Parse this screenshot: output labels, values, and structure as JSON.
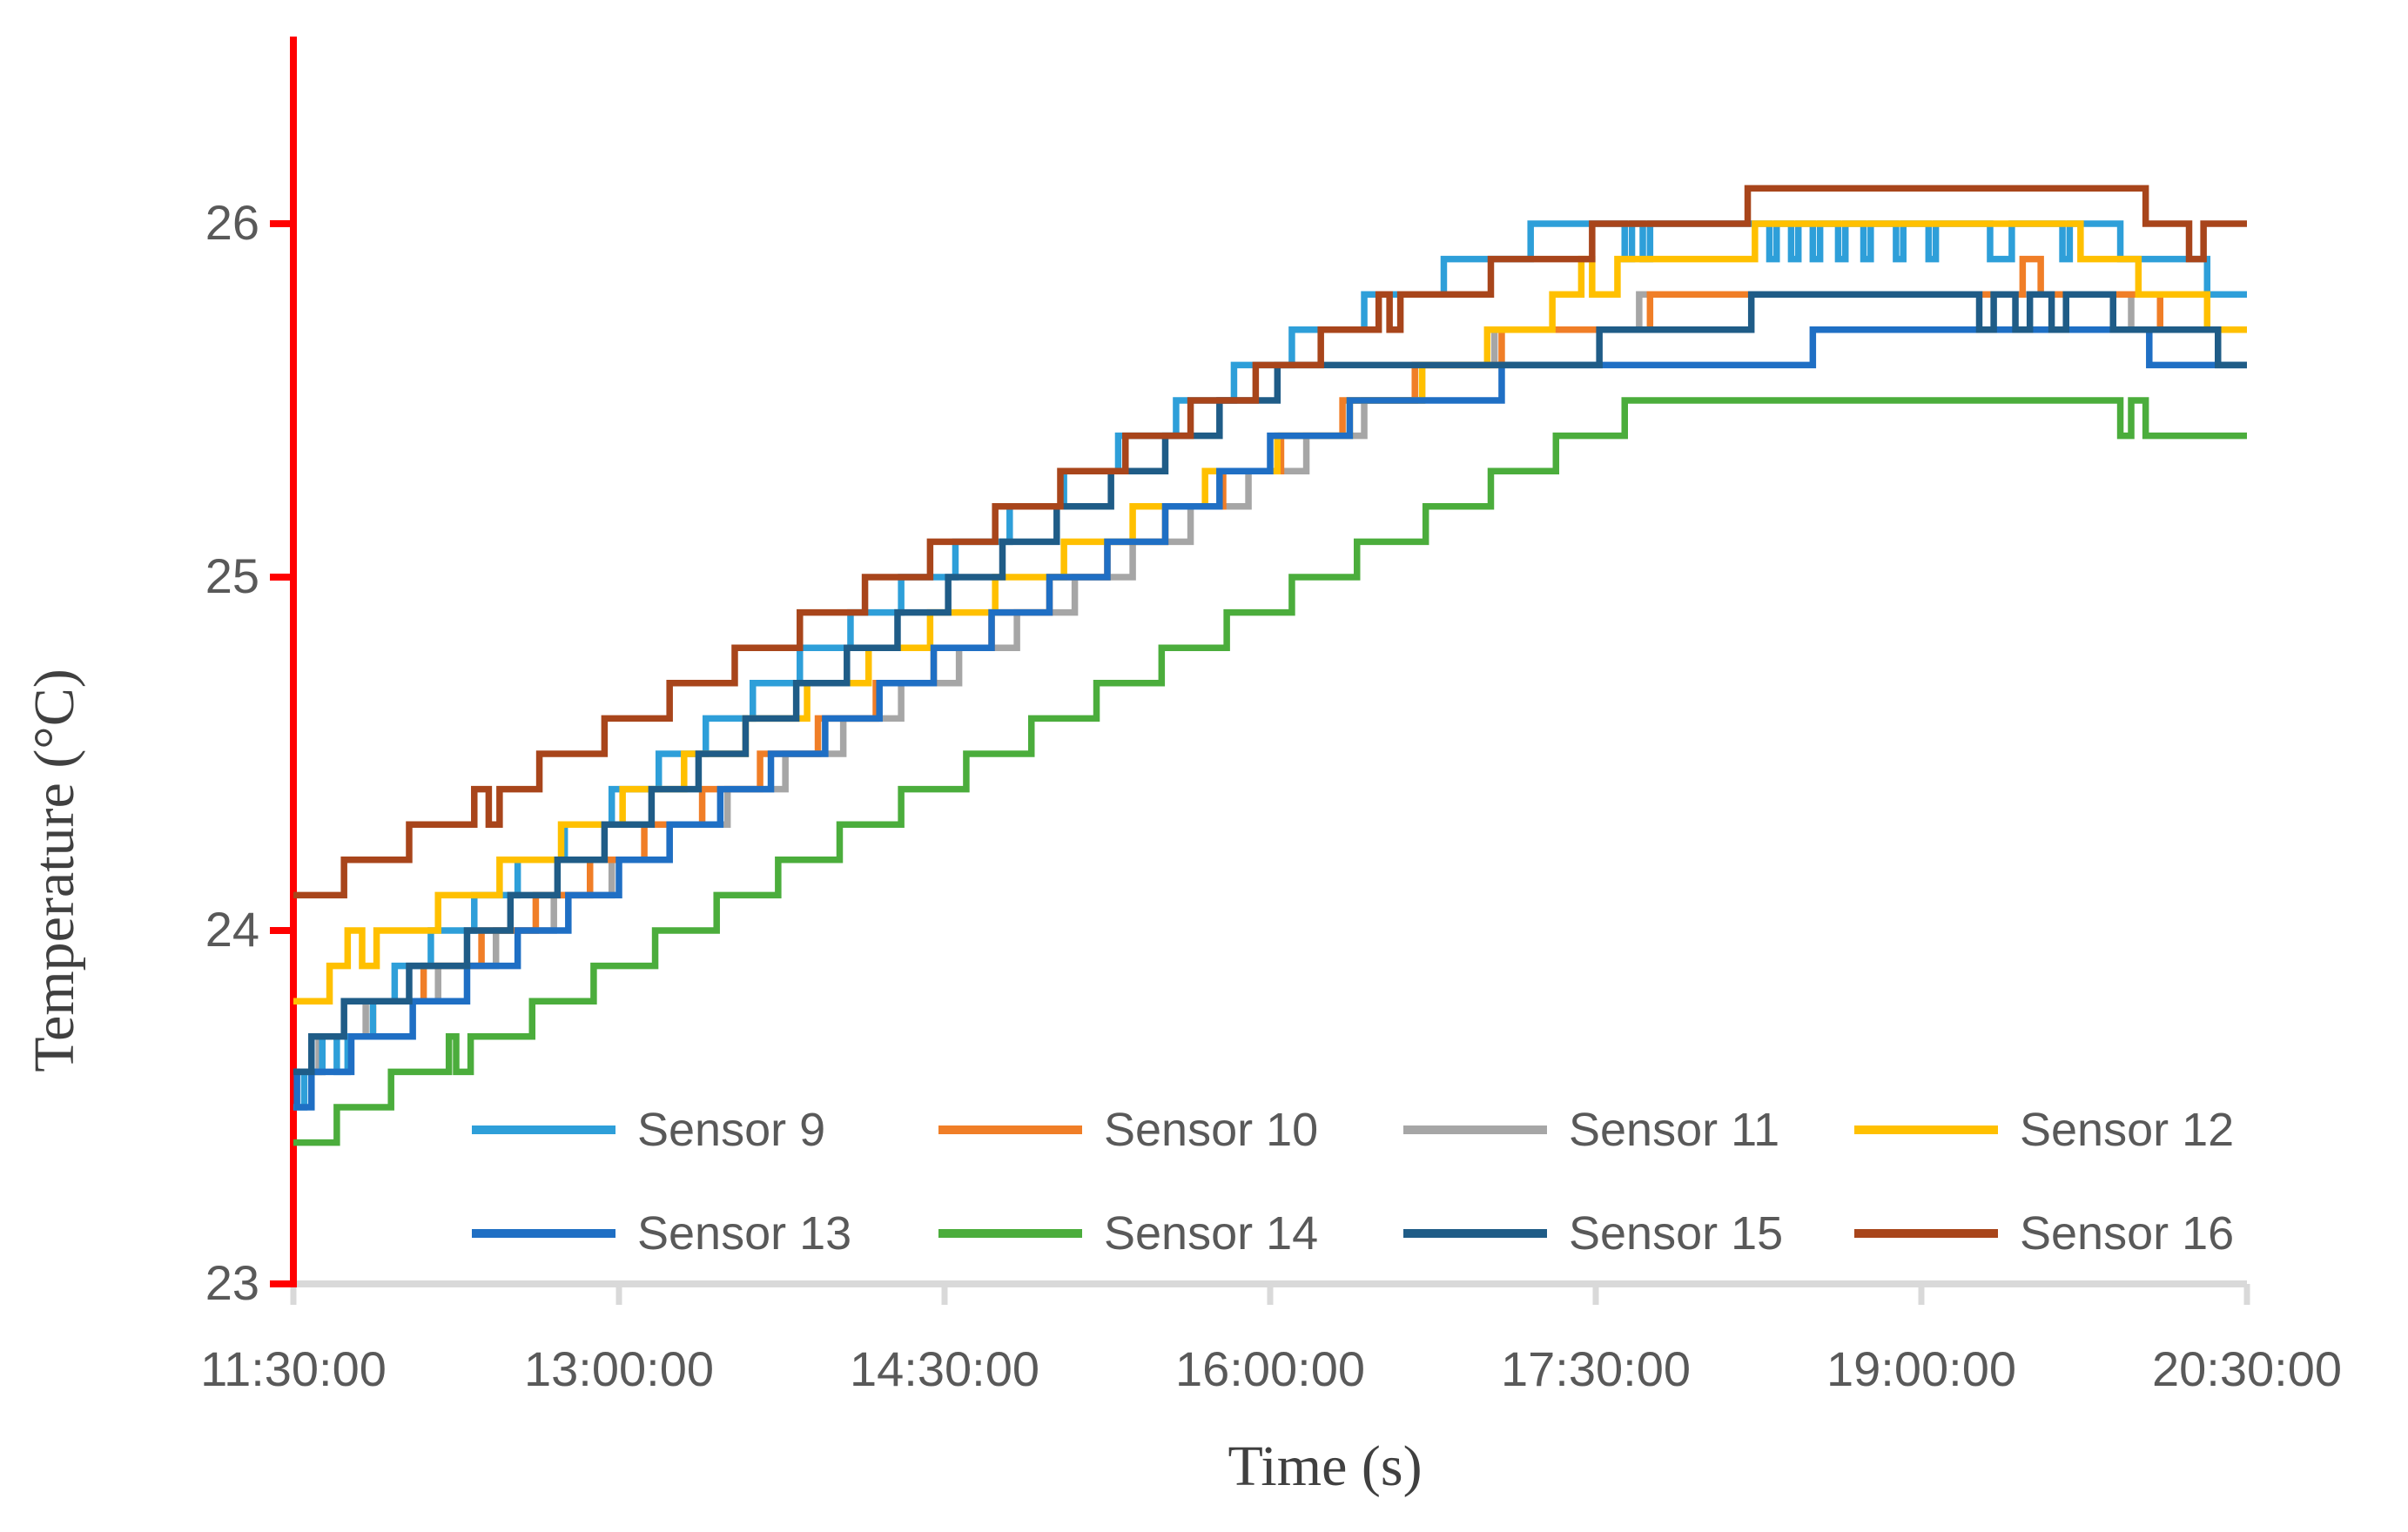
{
  "chart_data": {
    "type": "line",
    "step": true,
    "title": "",
    "x_axis": {
      "label": "Time  (s)",
      "start_time": "11:30:00",
      "end_time": "20:30:00",
      "tick_interval_minutes": 90,
      "range_minutes": [
        0,
        540
      ],
      "ticks": [
        "11:30:00",
        "13:00:00",
        "14:30:00",
        "16:00:00",
        "17:30:00",
        "19:00:00",
        "20:30:00"
      ],
      "axis_color": "#D9D9D9"
    },
    "y_axis": {
      "label": "Temperature  (°C)",
      "ticks": [
        26,
        25,
        24,
        23
      ],
      "ylim": [
        23,
        26.5
      ],
      "unit": "°C",
      "axis_color": "#FF0000"
    },
    "grid": false,
    "legend_position": "inside-bottom",
    "legend": {
      "rows": [
        [
          "Sensor 9",
          "Sensor 10",
          "Sensor 11",
          "Sensor 12"
        ],
        [
          "Sensor 13",
          "Sensor 14",
          "Sensor 15",
          "Sensor 16"
        ]
      ]
    },
    "draw_order": [
      "Sensor 11",
      "Sensor 10",
      "Sensor 9",
      "Sensor 12",
      "Sensor 13",
      "Sensor 15",
      "Sensor 14",
      "Sensor 16"
    ],
    "series": [
      {
        "name": "Sensor 9",
        "color": "#2E9FD9",
        "points": [
          [
            0,
            23.5
          ],
          [
            3,
            23.6
          ],
          [
            8,
            23.7
          ],
          [
            12,
            23.6
          ],
          [
            15,
            23.7
          ],
          [
            22,
            23.8
          ],
          [
            28,
            23.9
          ],
          [
            38,
            24.0
          ],
          [
            50,
            24.1
          ],
          [
            62,
            24.2
          ],
          [
            75,
            24.3
          ],
          [
            88,
            24.4
          ],
          [
            101,
            24.5
          ],
          [
            114,
            24.6
          ],
          [
            127,
            24.7
          ],
          [
            140,
            24.8
          ],
          [
            154,
            24.9
          ],
          [
            168,
            25.0
          ],
          [
            183,
            25.1
          ],
          [
            198,
            25.2
          ],
          [
            213,
            25.3
          ],
          [
            228,
            25.4
          ],
          [
            244,
            25.5
          ],
          [
            260,
            25.6
          ],
          [
            276,
            25.7
          ],
          [
            296,
            25.8
          ],
          [
            318,
            25.9
          ],
          [
            342,
            26.0
          ],
          [
            368,
            25.9
          ],
          [
            370,
            26.0
          ],
          [
            373,
            25.9
          ],
          [
            375,
            26.0
          ],
          [
            408,
            25.9
          ],
          [
            410,
            26.0
          ],
          [
            414,
            25.9
          ],
          [
            416,
            26.0
          ],
          [
            420,
            25.9
          ],
          [
            422,
            26.0
          ],
          [
            427,
            25.9
          ],
          [
            429,
            26.0
          ],
          [
            434,
            25.9
          ],
          [
            436,
            26.0
          ],
          [
            443,
            25.9
          ],
          [
            445,
            26.0
          ],
          [
            452,
            25.9
          ],
          [
            454,
            26.0
          ],
          [
            469,
            25.9
          ],
          [
            475,
            26.0
          ],
          [
            489,
            25.9
          ],
          [
            491,
            26.0
          ],
          [
            505,
            25.9
          ],
          [
            529,
            25.8
          ],
          [
            540,
            25.8
          ]
        ]
      },
      {
        "name": "Sensor 10",
        "color": "#F07E27",
        "points": [
          [
            0,
            23.6
          ],
          [
            8,
            23.7
          ],
          [
            22,
            23.8
          ],
          [
            36,
            23.9
          ],
          [
            52,
            24.0
          ],
          [
            67,
            24.1
          ],
          [
            82,
            24.2
          ],
          [
            97,
            24.3
          ],
          [
            113,
            24.4
          ],
          [
            129,
            24.5
          ],
          [
            145,
            24.6
          ],
          [
            161,
            24.7
          ],
          [
            177,
            24.8
          ],
          [
            193,
            24.9
          ],
          [
            209,
            25.0
          ],
          [
            225,
            25.1
          ],
          [
            241,
            25.2
          ],
          [
            257,
            25.3
          ],
          [
            273,
            25.4
          ],
          [
            290,
            25.5
          ],
          [
            310,
            25.6
          ],
          [
            334,
            25.7
          ],
          [
            375,
            25.8
          ],
          [
            478,
            25.9
          ],
          [
            483,
            25.8
          ],
          [
            516,
            25.7
          ],
          [
            540,
            25.7
          ]
        ]
      },
      {
        "name": "Sensor 11",
        "color": "#A6A6A6",
        "points": [
          [
            0,
            23.6
          ],
          [
            7,
            23.7
          ],
          [
            20,
            23.8
          ],
          [
            40,
            23.9
          ],
          [
            56,
            24.0
          ],
          [
            72,
            24.1
          ],
          [
            88,
            24.2
          ],
          [
            104,
            24.3
          ],
          [
            120,
            24.4
          ],
          [
            136,
            24.5
          ],
          [
            152,
            24.6
          ],
          [
            168,
            24.7
          ],
          [
            184,
            24.8
          ],
          [
            200,
            24.9
          ],
          [
            216,
            25.0
          ],
          [
            232,
            25.1
          ],
          [
            248,
            25.2
          ],
          [
            264,
            25.3
          ],
          [
            280,
            25.4
          ],
          [
            296,
            25.5
          ],
          [
            312,
            25.6
          ],
          [
            332,
            25.7
          ],
          [
            372,
            25.8
          ],
          [
            508,
            25.7
          ],
          [
            540,
            25.7
          ]
        ]
      },
      {
        "name": "Sensor 12",
        "color": "#FFC000",
        "points": [
          [
            0,
            23.8
          ],
          [
            10,
            23.9
          ],
          [
            15,
            24.0
          ],
          [
            19,
            23.9
          ],
          [
            23,
            24.0
          ],
          [
            40,
            24.1
          ],
          [
            57,
            24.2
          ],
          [
            74,
            24.3
          ],
          [
            91,
            24.4
          ],
          [
            108,
            24.5
          ],
          [
            125,
            24.6
          ],
          [
            142,
            24.7
          ],
          [
            159,
            24.8
          ],
          [
            176,
            24.9
          ],
          [
            194,
            25.0
          ],
          [
            213,
            25.1
          ],
          [
            232,
            25.2
          ],
          [
            252,
            25.3
          ],
          [
            272,
            25.4
          ],
          [
            292,
            25.5
          ],
          [
            312,
            25.6
          ],
          [
            330,
            25.7
          ],
          [
            348,
            25.8
          ],
          [
            356,
            25.9
          ],
          [
            359,
            25.8
          ],
          [
            366,
            25.9
          ],
          [
            404,
            26.0
          ],
          [
            494,
            25.9
          ],
          [
            510,
            25.8
          ],
          [
            529,
            25.7
          ],
          [
            540,
            25.7
          ]
        ]
      },
      {
        "name": "Sensor 13",
        "color": "#1F6FC4",
        "points": [
          [
            0,
            23.6
          ],
          [
            1,
            23.5
          ],
          [
            5,
            23.6
          ],
          [
            16,
            23.7
          ],
          [
            33,
            23.8
          ],
          [
            48,
            23.9
          ],
          [
            62,
            24.0
          ],
          [
            76,
            24.1
          ],
          [
            90,
            24.2
          ],
          [
            104,
            24.3
          ],
          [
            118,
            24.4
          ],
          [
            132,
            24.5
          ],
          [
            147,
            24.6
          ],
          [
            162,
            24.7
          ],
          [
            177,
            24.8
          ],
          [
            193,
            24.9
          ],
          [
            209,
            25.0
          ],
          [
            225,
            25.1
          ],
          [
            241,
            25.2
          ],
          [
            256,
            25.3
          ],
          [
            270,
            25.4
          ],
          [
            292,
            25.5
          ],
          [
            334,
            25.6
          ],
          [
            420,
            25.7
          ],
          [
            513,
            25.6
          ],
          [
            540,
            25.6
          ]
        ]
      },
      {
        "name": "Sensor 14",
        "color": "#4BAD3C",
        "points": [
          [
            0,
            23.4
          ],
          [
            12,
            23.5
          ],
          [
            27,
            23.6
          ],
          [
            43,
            23.7
          ],
          [
            45,
            23.6
          ],
          [
            49,
            23.7
          ],
          [
            66,
            23.8
          ],
          [
            83,
            23.9
          ],
          [
            100,
            24.0
          ],
          [
            117,
            24.1
          ],
          [
            134,
            24.2
          ],
          [
            151,
            24.3
          ],
          [
            168,
            24.4
          ],
          [
            186,
            24.5
          ],
          [
            204,
            24.6
          ],
          [
            222,
            24.7
          ],
          [
            240,
            24.8
          ],
          [
            258,
            24.9
          ],
          [
            276,
            25.0
          ],
          [
            294,
            25.1
          ],
          [
            313,
            25.2
          ],
          [
            331,
            25.3
          ],
          [
            349,
            25.4
          ],
          [
            368,
            25.5
          ],
          [
            505,
            25.4
          ],
          [
            508,
            25.5
          ],
          [
            512,
            25.4
          ],
          [
            540,
            25.4
          ]
        ]
      },
      {
        "name": "Sensor 15",
        "color": "#1F5C87",
        "points": [
          [
            0,
            23.6
          ],
          [
            5,
            23.7
          ],
          [
            14,
            23.8
          ],
          [
            32,
            23.9
          ],
          [
            48,
            24.0
          ],
          [
            60,
            24.1
          ],
          [
            73,
            24.2
          ],
          [
            86,
            24.3
          ],
          [
            99,
            24.4
          ],
          [
            112,
            24.5
          ],
          [
            125,
            24.6
          ],
          [
            139,
            24.7
          ],
          [
            153,
            24.8
          ],
          [
            167,
            24.9
          ],
          [
            181,
            25.0
          ],
          [
            196,
            25.1
          ],
          [
            211,
            25.2
          ],
          [
            226,
            25.3
          ],
          [
            241,
            25.4
          ],
          [
            256,
            25.5
          ],
          [
            272,
            25.6
          ],
          [
            361,
            25.7
          ],
          [
            403,
            25.8
          ],
          [
            466,
            25.7
          ],
          [
            470,
            25.8
          ],
          [
            476,
            25.7
          ],
          [
            480,
            25.8
          ],
          [
            486,
            25.7
          ],
          [
            490,
            25.8
          ],
          [
            503,
            25.7
          ],
          [
            532,
            25.6
          ],
          [
            540,
            25.6
          ]
        ]
      },
      {
        "name": "Sensor 16",
        "color": "#A8451B",
        "points": [
          [
            0,
            24.1
          ],
          [
            14,
            24.2
          ],
          [
            32,
            24.3
          ],
          [
            50,
            24.4
          ],
          [
            54,
            24.3
          ],
          [
            57,
            24.4
          ],
          [
            68,
            24.5
          ],
          [
            86,
            24.6
          ],
          [
            104,
            24.7
          ],
          [
            122,
            24.8
          ],
          [
            140,
            24.9
          ],
          [
            158,
            25.0
          ],
          [
            176,
            25.1
          ],
          [
            194,
            25.2
          ],
          [
            212,
            25.3
          ],
          [
            230,
            25.4
          ],
          [
            248,
            25.5
          ],
          [
            266,
            25.6
          ],
          [
            284,
            25.7
          ],
          [
            300,
            25.8
          ],
          [
            303,
            25.7
          ],
          [
            306,
            25.8
          ],
          [
            331,
            25.9
          ],
          [
            359,
            26.0
          ],
          [
            402,
            26.1
          ],
          [
            512,
            26.0
          ],
          [
            524,
            25.9
          ],
          [
            528,
            26.0
          ],
          [
            540,
            26.0
          ]
        ]
      }
    ]
  }
}
